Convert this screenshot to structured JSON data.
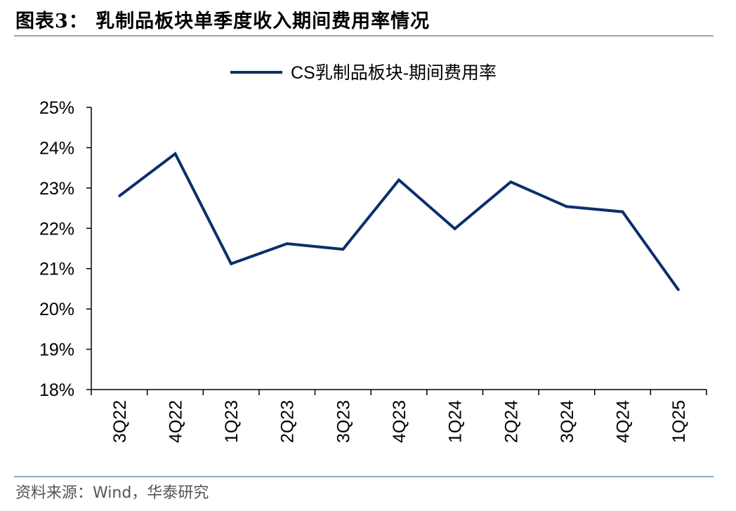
{
  "figure": {
    "title": "图表3：  乳制品板块单季度收入期间费用率情况",
    "source": "资料来源：Wind，华泰研究"
  },
  "chart_data": {
    "type": "line",
    "title": "",
    "xlabel": "",
    "ylabel": "",
    "categories": [
      "3Q22",
      "4Q22",
      "1Q23",
      "2Q23",
      "3Q23",
      "4Q23",
      "1Q24",
      "2Q24",
      "3Q24",
      "4Q24",
      "1Q25"
    ],
    "series": [
      {
        "name": "CS乳制品板块-期间费用率",
        "values": [
          22.8,
          23.85,
          21.12,
          21.62,
          21.48,
          23.2,
          21.99,
          23.15,
          22.54,
          22.41,
          20.47
        ],
        "color": "#0b2f6b"
      }
    ],
    "ylim": [
      18,
      25
    ],
    "yticks": [
      "25%",
      "24%",
      "23%",
      "22%",
      "21%",
      "20%",
      "19%",
      "18%"
    ],
    "ytick_values": [
      25,
      24,
      23,
      22,
      21,
      20,
      19,
      18
    ],
    "grid": false,
    "legend_position": "top-center",
    "axis_color": "#000000"
  }
}
